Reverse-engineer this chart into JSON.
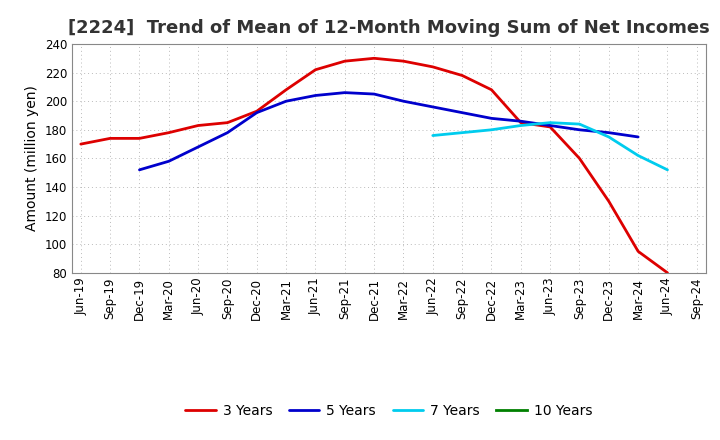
{
  "title": "[2224]  Trend of Mean of 12-Month Moving Sum of Net Incomes",
  "ylabel": "Amount (million yen)",
  "ylim": [
    80,
    240
  ],
  "yticks": [
    80,
    100,
    120,
    140,
    160,
    180,
    200,
    220,
    240
  ],
  "x_labels": [
    "Jun-19",
    "Sep-19",
    "Dec-19",
    "Mar-20",
    "Jun-20",
    "Sep-20",
    "Dec-20",
    "Mar-21",
    "Jun-21",
    "Sep-21",
    "Dec-21",
    "Mar-22",
    "Jun-22",
    "Sep-22",
    "Dec-22",
    "Mar-23",
    "Jun-23",
    "Sep-23",
    "Dec-23",
    "Mar-24",
    "Jun-24",
    "Sep-24"
  ],
  "series": [
    {
      "key": "series_3y",
      "label": "3 Years",
      "color": "#dd0000",
      "values": [
        170,
        174,
        174,
        178,
        183,
        185,
        193,
        208,
        222,
        228,
        230,
        228,
        224,
        218,
        208,
        185,
        182,
        160,
        130,
        95,
        80,
        null
      ]
    },
    {
      "key": "series_5y",
      "label": "5 Years",
      "color": "#0000cc",
      "values": [
        null,
        null,
        152,
        158,
        168,
        178,
        192,
        200,
        204,
        206,
        205,
        200,
        196,
        192,
        188,
        186,
        183,
        180,
        178,
        175,
        null,
        null
      ]
    },
    {
      "key": "series_7y",
      "label": "7 Years",
      "color": "#00ccee",
      "values": [
        null,
        null,
        null,
        null,
        null,
        null,
        null,
        null,
        null,
        null,
        null,
        null,
        176,
        178,
        180,
        183,
        185,
        184,
        175,
        162,
        152,
        null
      ]
    },
    {
      "key": "series_10y",
      "label": "10 Years",
      "color": "#008000",
      "values": [
        null,
        null,
        null,
        null,
        null,
        null,
        null,
        null,
        null,
        null,
        null,
        null,
        null,
        null,
        null,
        null,
        null,
        null,
        null,
        null,
        null,
        null
      ]
    }
  ],
  "background_color": "#ffffff",
  "grid_color": "#bbbbbb",
  "title_fontsize": 13,
  "label_fontsize": 10,
  "tick_fontsize": 8.5
}
